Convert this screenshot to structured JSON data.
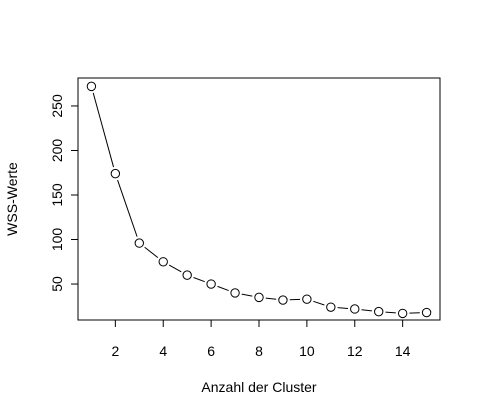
{
  "chart_data": {
    "type": "line",
    "title": "",
    "xlabel": "Anzahl der Cluster",
    "ylabel": "WSS-Werte",
    "xlim": [
      0.44,
      15.56
    ],
    "ylim": [
      9.6,
      281.4
    ],
    "x_ticks": [
      2,
      4,
      6,
      8,
      10,
      12,
      14
    ],
    "y_ticks": [
      50,
      100,
      150,
      200,
      250
    ],
    "grid": false,
    "legend": "none",
    "point_style": "open-circle",
    "series": [
      {
        "x": [
          1,
          2,
          3,
          4,
          5,
          6,
          7,
          8,
          9,
          10,
          11,
          12,
          13,
          14,
          15
        ],
        "values": [
          272,
          174,
          96,
          75,
          60,
          50,
          40,
          35,
          32,
          33,
          24,
          22,
          19,
          17,
          18
        ]
      }
    ]
  }
}
